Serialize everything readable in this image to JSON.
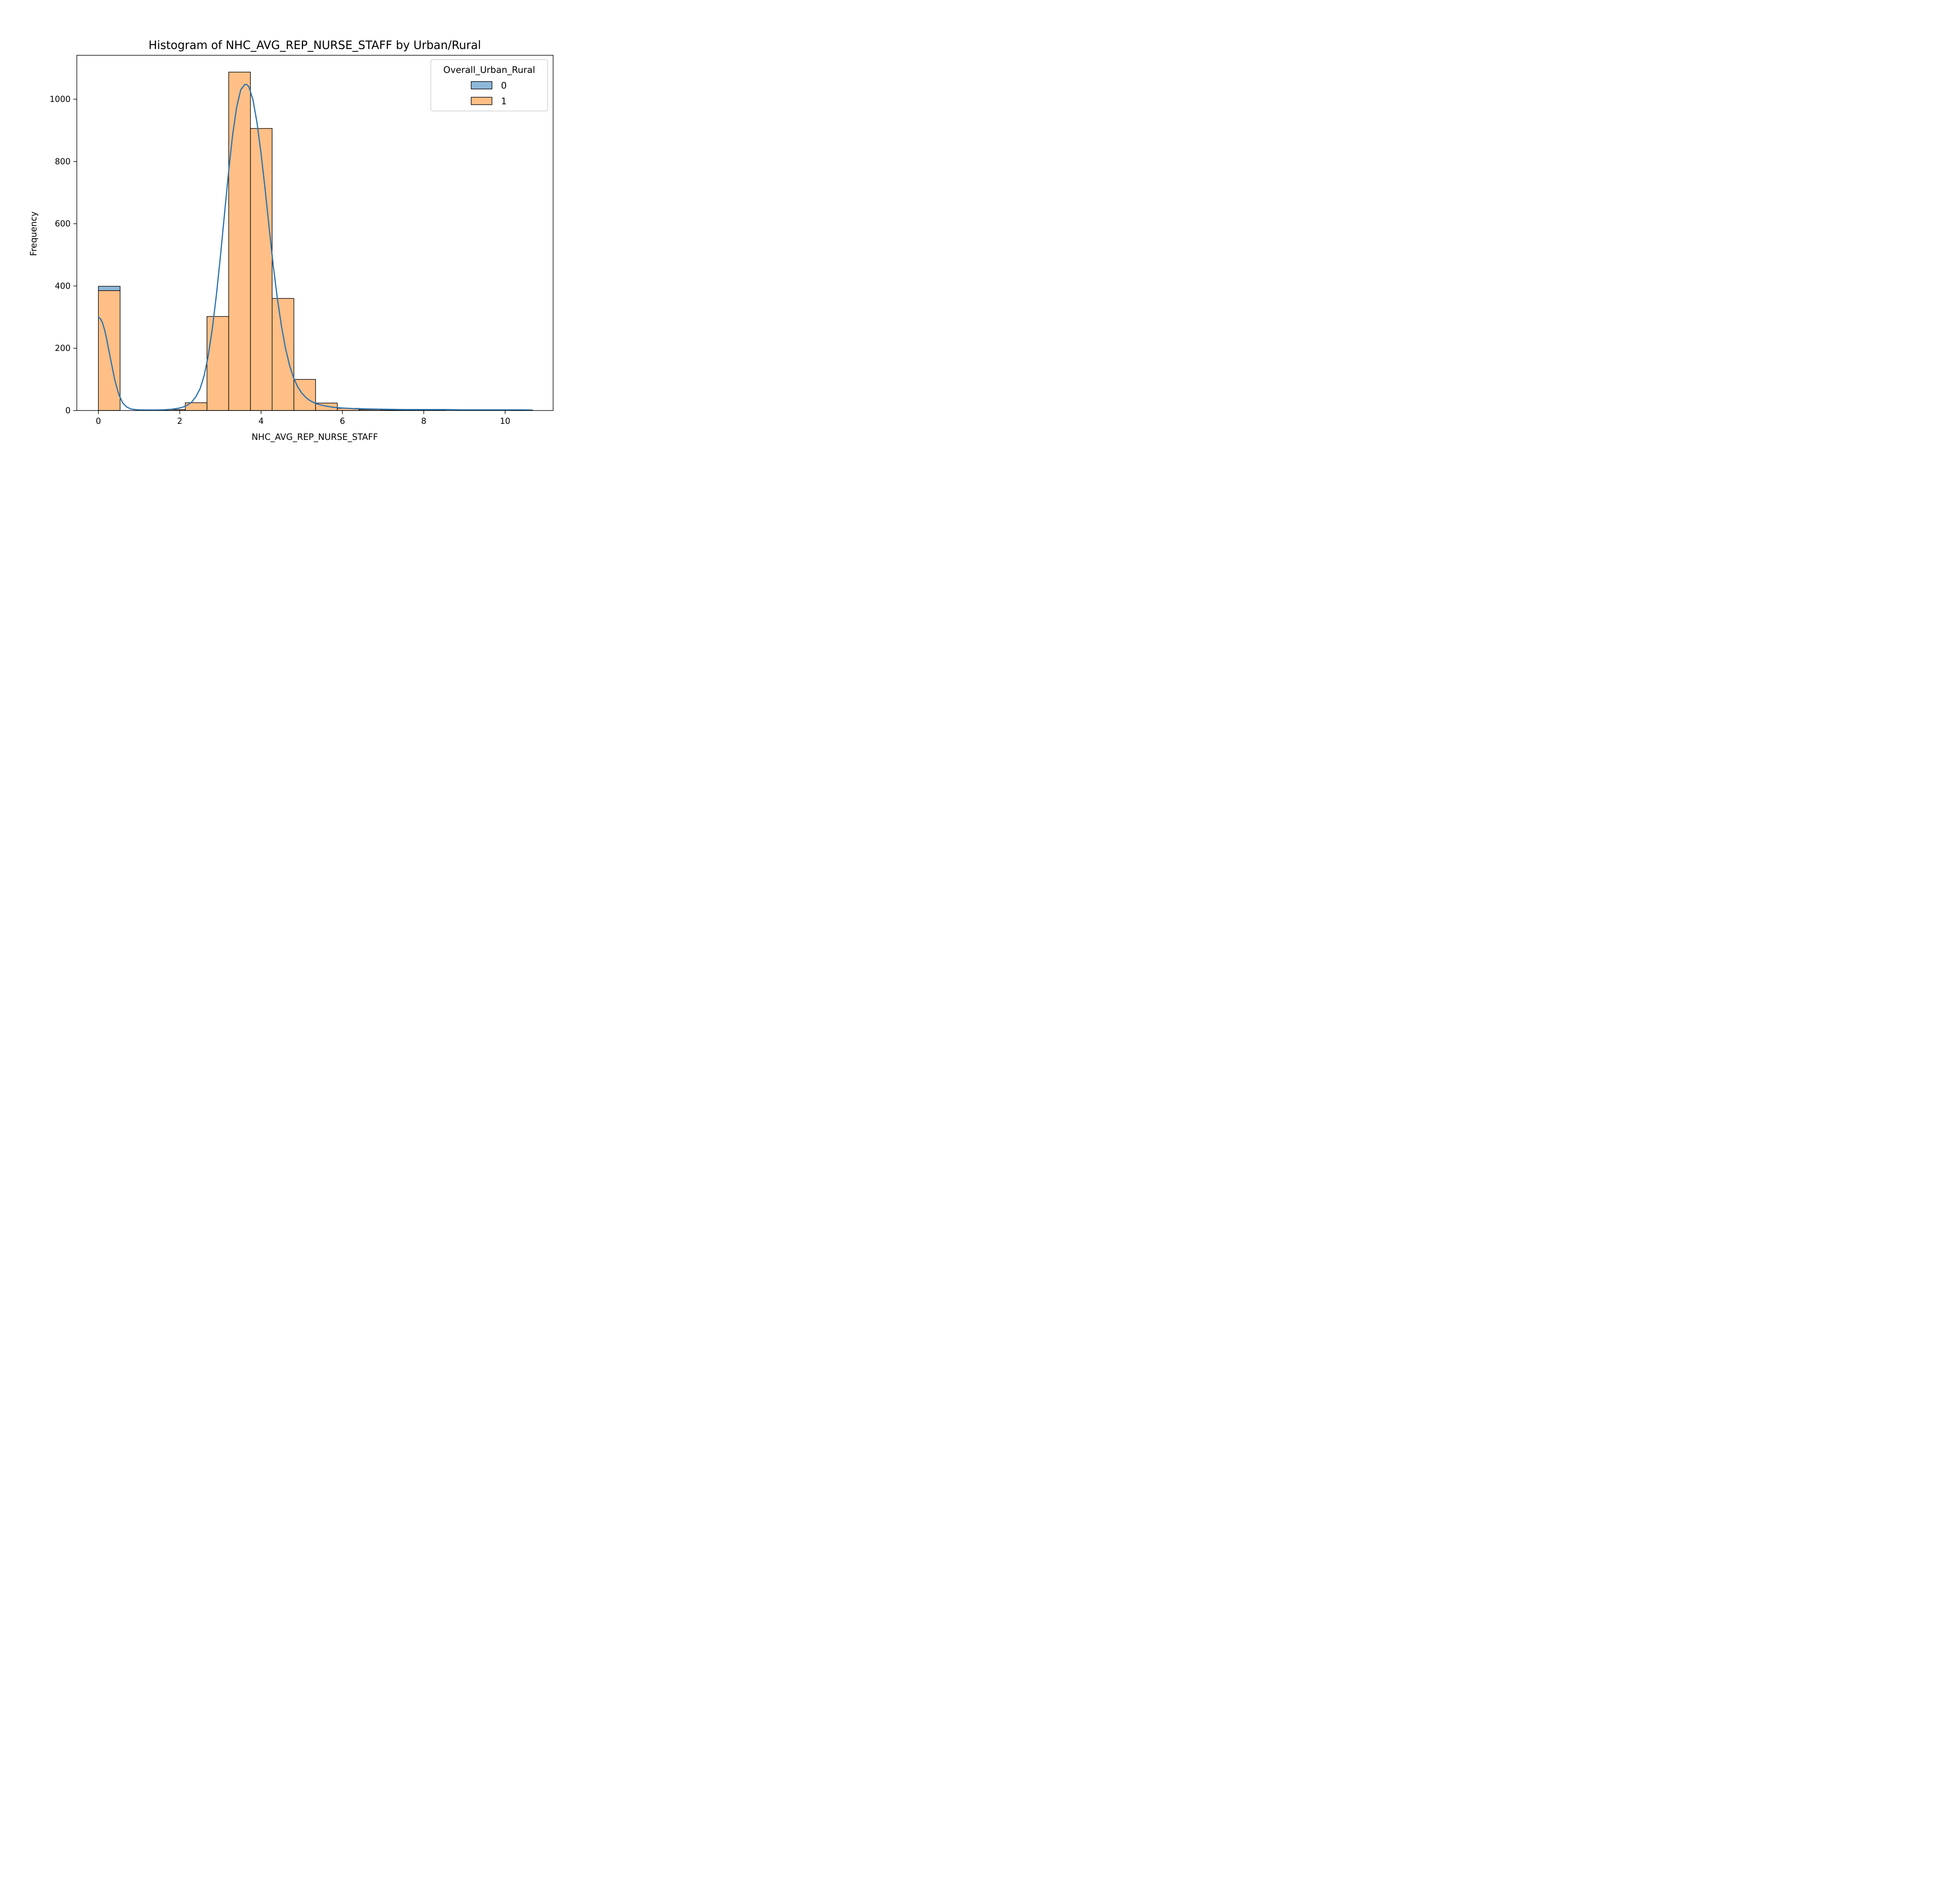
{
  "chart_data": {
    "type": "bar",
    "title": "Histogram of NHC_AVG_REP_NURSE_STAFF by Urban/Rural",
    "xlabel": "NHC_AVG_REP_NURSE_STAFF",
    "ylabel": "Frequency",
    "xlim": [
      -0.53,
      11.18
    ],
    "ylim": [
      0,
      1141
    ],
    "xticks": [
      0,
      2,
      4,
      6,
      8,
      10
    ],
    "yticks": [
      0,
      200,
      400,
      600,
      800,
      1000
    ],
    "grid": false,
    "stacked": true,
    "bin_edges": [
      0,
      0.534,
      1.068,
      1.602,
      2.136,
      2.67,
      3.204,
      3.738,
      4.272,
      4.806,
      5.34,
      5.874,
      6.408,
      6.942,
      7.476,
      8.01,
      8.544,
      9.078,
      9.612,
      10.146,
      10.68
    ],
    "series": [
      {
        "name": "0",
        "color": "#8db8da",
        "values": [
          14,
          0,
          0,
          0,
          0,
          0,
          0,
          0,
          0,
          0,
          0,
          0,
          0,
          0,
          0,
          0,
          0,
          0,
          0,
          0
        ]
      },
      {
        "name": "1",
        "color": "#ffbf86",
        "values": [
          385,
          0,
          0,
          3,
          25,
          302,
          1087,
          906,
          360,
          100,
          24,
          7,
          3,
          1,
          1,
          2,
          0,
          0,
          0,
          1
        ]
      }
    ],
    "kde": {
      "color": "#2b72ad",
      "x": [
        0,
        0.05,
        0.1,
        0.15,
        0.2,
        0.3,
        0.4,
        0.5,
        0.6,
        0.7,
        0.8,
        0.9,
        1.0,
        1.2,
        1.4,
        1.6,
        1.8,
        2.0,
        2.1,
        2.2,
        2.3,
        2.4,
        2.5,
        2.6,
        2.7,
        2.8,
        2.9,
        3.0,
        3.1,
        3.2,
        3.3,
        3.4,
        3.5,
        3.6,
        3.65,
        3.7,
        3.8,
        3.9,
        4.0,
        4.1,
        4.2,
        4.3,
        4.4,
        4.5,
        4.6,
        4.7,
        4.8,
        4.9,
        5.0,
        5.1,
        5.2,
        5.3,
        5.4,
        5.6,
        5.8,
        6.0,
        6.3,
        6.6,
        7.0,
        7.5,
        8.0,
        8.5,
        9.0,
        9.5,
        10.0,
        10.3,
        10.65
      ],
      "y": [
        300,
        295,
        282,
        260,
        232,
        165,
        100,
        52,
        24,
        11,
        5,
        3,
        2,
        1.5,
        1.5,
        2,
        4,
        8,
        12,
        18,
        28,
        45,
        70,
        112,
        175,
        262,
        370,
        495,
        630,
        765,
        885,
        975,
        1030,
        1047,
        1047,
        1040,
        998,
        925,
        825,
        710,
        585,
        465,
        360,
        272,
        200,
        145,
        105,
        76,
        56,
        42,
        32,
        25,
        20,
        14,
        10,
        8,
        6,
        5,
        4,
        3,
        3,
        3,
        2,
        2,
        2,
        2,
        1.5
      ]
    },
    "legend": {
      "title": "Overall_Urban_Rural",
      "entries": [
        "0",
        "1"
      ],
      "placement": "top-right"
    }
  }
}
